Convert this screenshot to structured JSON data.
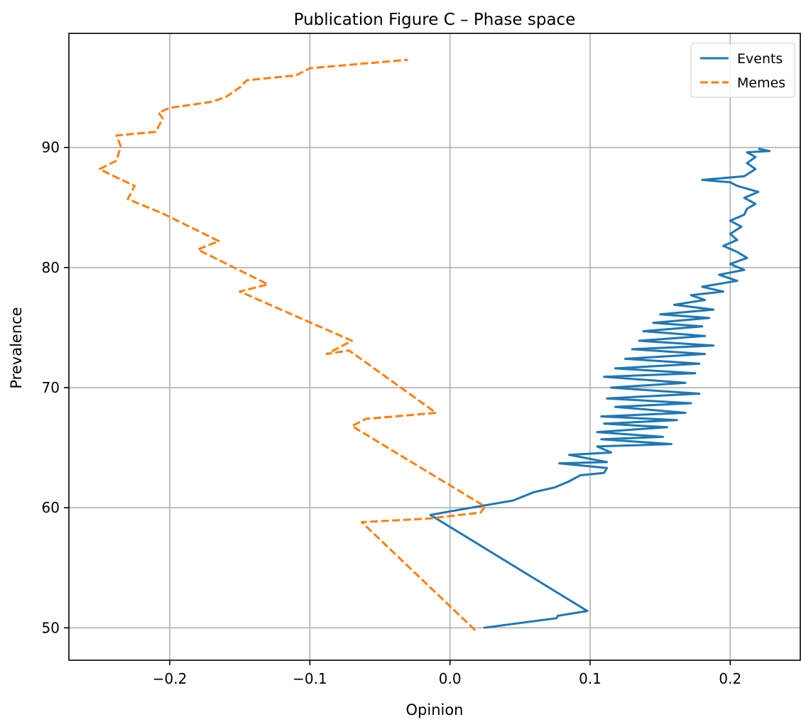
{
  "chart_data": {
    "type": "line",
    "title": "Publication Figure C – Phase space",
    "xlabel": "Opinion",
    "ylabel": "Prevalence",
    "xlim": [
      -0.272,
      0.25
    ],
    "ylim": [
      47.3,
      99.5
    ],
    "xticks": [
      -0.2,
      -0.1,
      0.0,
      0.1,
      0.2
    ],
    "xtick_labels": [
      "−0.2",
      "−0.1",
      "0.0",
      "0.1",
      "0.2"
    ],
    "yticks": [
      50,
      60,
      70,
      80,
      90
    ],
    "ytick_labels": [
      "50",
      "60",
      "70",
      "80",
      "90"
    ],
    "grid": true,
    "legend_position": "top-right",
    "series": [
      {
        "name": "Events",
        "color": "#1f77b4",
        "dash": "solid",
        "points": [
          [
            0.024,
            50.0
          ],
          [
            0.076,
            50.8
          ],
          [
            0.077,
            51.0
          ],
          [
            0.098,
            51.4
          ],
          [
            -0.014,
            59.4
          ],
          [
            0.005,
            59.8
          ],
          [
            0.025,
            60.2
          ],
          [
            0.045,
            60.6
          ],
          [
            0.06,
            61.3
          ],
          [
            0.075,
            61.7
          ],
          [
            0.085,
            62.2
          ],
          [
            0.093,
            62.7
          ],
          [
            0.11,
            62.9
          ],
          [
            0.112,
            63.3
          ],
          [
            0.078,
            63.7
          ],
          [
            0.112,
            63.8
          ],
          [
            0.085,
            64.4
          ],
          [
            0.115,
            64.6
          ],
          [
            0.105,
            65.1
          ],
          [
            0.158,
            65.3
          ],
          [
            0.108,
            65.7
          ],
          [
            0.152,
            65.9
          ],
          [
            0.105,
            66.3
          ],
          [
            0.155,
            66.7
          ],
          [
            0.11,
            67.0
          ],
          [
            0.162,
            67.3
          ],
          [
            0.108,
            67.6
          ],
          [
            0.168,
            67.9
          ],
          [
            0.118,
            68.4
          ],
          [
            0.172,
            68.7
          ],
          [
            0.112,
            69.1
          ],
          [
            0.178,
            69.5
          ],
          [
            0.115,
            70.0
          ],
          [
            0.168,
            70.4
          ],
          [
            0.11,
            70.9
          ],
          [
            0.175,
            71.2
          ],
          [
            0.118,
            71.6
          ],
          [
            0.178,
            72.0
          ],
          [
            0.125,
            72.4
          ],
          [
            0.182,
            72.8
          ],
          [
            0.13,
            73.2
          ],
          [
            0.188,
            73.5
          ],
          [
            0.135,
            73.9
          ],
          [
            0.182,
            74.3
          ],
          [
            0.138,
            74.7
          ],
          [
            0.18,
            75.1
          ],
          [
            0.145,
            75.4
          ],
          [
            0.185,
            75.8
          ],
          [
            0.15,
            76.1
          ],
          [
            0.188,
            76.5
          ],
          [
            0.16,
            76.9
          ],
          [
            0.182,
            77.3
          ],
          [
            0.172,
            77.7
          ],
          [
            0.195,
            78.0
          ],
          [
            0.18,
            78.4
          ],
          [
            0.205,
            78.9
          ],
          [
            0.192,
            79.4
          ],
          [
            0.21,
            79.8
          ],
          [
            0.2,
            80.3
          ],
          [
            0.212,
            80.8
          ],
          [
            0.205,
            81.3
          ],
          [
            0.195,
            81.8
          ],
          [
            0.205,
            82.3
          ],
          [
            0.2,
            82.8
          ],
          [
            0.208,
            83.4
          ],
          [
            0.2,
            83.9
          ],
          [
            0.21,
            84.4
          ],
          [
            0.212,
            84.9
          ],
          [
            0.218,
            85.3
          ],
          [
            0.21,
            85.8
          ],
          [
            0.22,
            86.3
          ],
          [
            0.205,
            86.8
          ],
          [
            0.2,
            87.1
          ],
          [
            0.18,
            87.3
          ],
          [
            0.21,
            87.6
          ],
          [
            0.218,
            88.2
          ],
          [
            0.212,
            88.7
          ],
          [
            0.218,
            89.2
          ],
          [
            0.212,
            89.6
          ],
          [
            0.228,
            89.7
          ],
          [
            0.22,
            89.9
          ]
        ]
      },
      {
        "name": "Memes",
        "color": "#ff7f0e",
        "dash": "dashed",
        "points": [
          [
            0.018,
            49.8
          ],
          [
            -0.063,
            58.8
          ],
          [
            -0.015,
            59.1
          ],
          [
            0.022,
            59.6
          ],
          [
            0.025,
            60.1
          ],
          [
            -0.07,
            66.8
          ],
          [
            -0.06,
            67.4
          ],
          [
            -0.01,
            67.9
          ],
          [
            -0.072,
            73.1
          ],
          [
            -0.088,
            72.8
          ],
          [
            -0.07,
            73.9
          ],
          [
            -0.15,
            78.0
          ],
          [
            -0.13,
            78.6
          ],
          [
            -0.18,
            81.5
          ],
          [
            -0.165,
            82.2
          ],
          [
            -0.205,
            84.5
          ],
          [
            -0.23,
            85.7
          ],
          [
            -0.225,
            86.8
          ],
          [
            -0.238,
            87.5
          ],
          [
            -0.25,
            88.2
          ],
          [
            -0.238,
            88.9
          ],
          [
            -0.235,
            90.1
          ],
          [
            -0.238,
            91.0
          ],
          [
            -0.21,
            91.3
          ],
          [
            -0.205,
            92.4
          ],
          [
            -0.208,
            92.9
          ],
          [
            -0.2,
            93.3
          ],
          [
            -0.17,
            93.8
          ],
          [
            -0.16,
            94.2
          ],
          [
            -0.15,
            95.0
          ],
          [
            -0.145,
            95.6
          ],
          [
            -0.11,
            96.0
          ],
          [
            -0.1,
            96.6
          ],
          [
            -0.06,
            97.0
          ],
          [
            -0.03,
            97.3
          ]
        ]
      }
    ]
  }
}
